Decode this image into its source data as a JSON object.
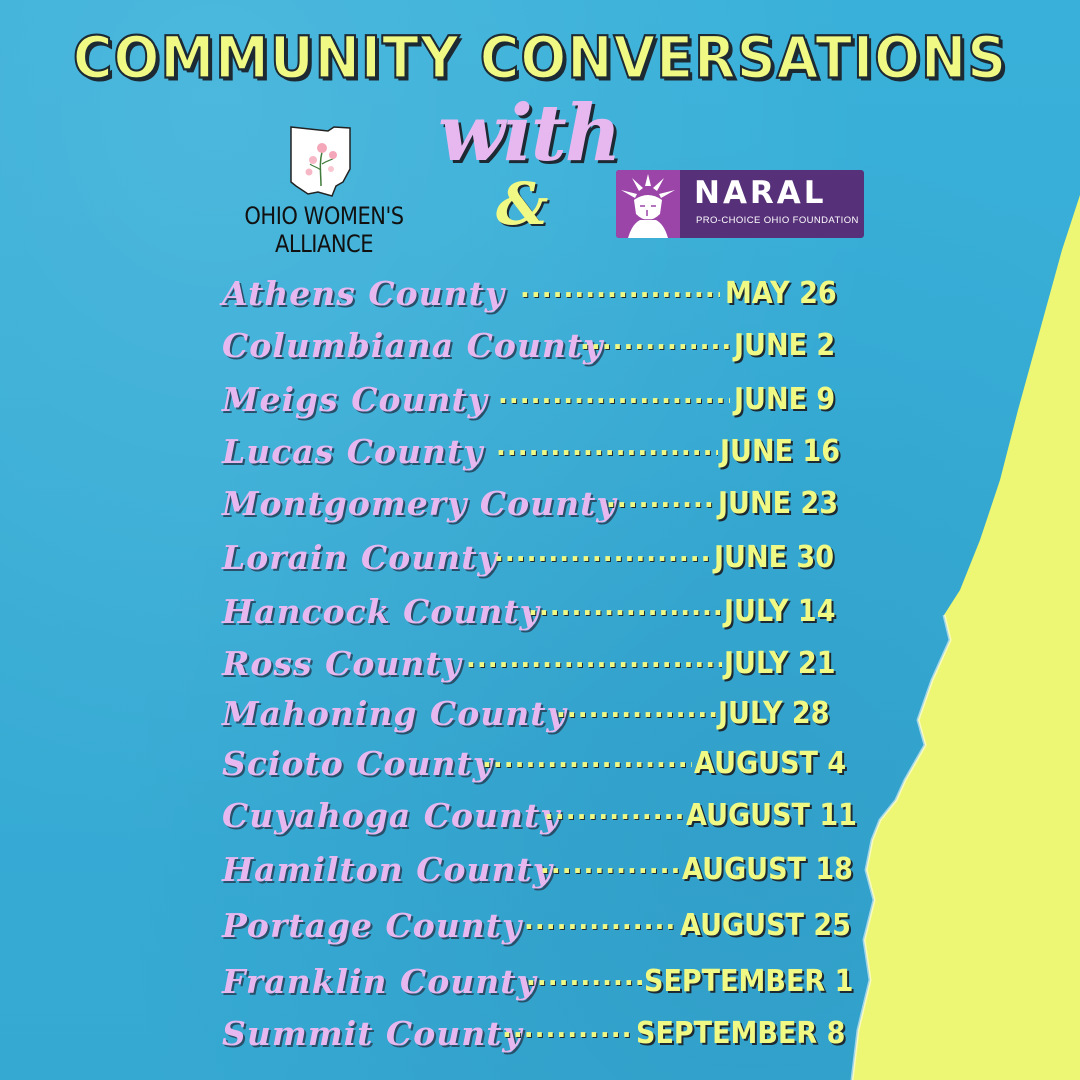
{
  "title": "COMMUNITY CONVERSATIONS",
  "connector_word": "with",
  "ampersand": "&",
  "colors": {
    "background": "#3aaed6",
    "yellow": "#f1f985",
    "lavender": "#e7b8f0",
    "naral_purple": "#57307a"
  },
  "partners": {
    "owa": {
      "name": "OHIO WOMEN'S ALLIANCE",
      "icon": "ohio-map-flower-icon"
    },
    "naral": {
      "name": "NARAL",
      "subtitle": "PRO-CHOICE OHIO FOUNDATION",
      "icon": "statue-of-liberty-icon"
    }
  },
  "schedule": [
    {
      "county": "Athens County",
      "dots": "........................",
      "date": "MAY 26"
    },
    {
      "county": "Columbiana County",
      "dots": "..................",
      "date": "JUNE 2"
    },
    {
      "county": "Meigs County",
      "dots": "...........................",
      "date": "JUNE 9"
    },
    {
      "county": "Lucas County",
      "dots": "..........................",
      "date": "JUNE 16"
    },
    {
      "county": "Montgomery County",
      "dots": ".............",
      "date": "JUNE 23"
    },
    {
      "county": "Lorain County",
      "dots": "...........................",
      "date": "JUNE 30"
    },
    {
      "county": "Hancock County",
      "dots": "........................",
      "date": "JULY 14"
    },
    {
      "county": "Ross County",
      "dots": "................................",
      "date": "JULY 21"
    },
    {
      "county": "Mahoning County",
      "dots": "...................",
      "date": "JULY 28"
    },
    {
      "county": "Scioto County",
      "dots": "..........................",
      "date": "AUGUST 4"
    },
    {
      "county": "Cuyahoga County",
      "dots": "................",
      "date": "AUGUST 11"
    },
    {
      "county": "Hamilton County",
      "dots": "................",
      "date": "AUGUST 18"
    },
    {
      "county": "Portage County",
      "dots": "...................",
      "date": "AUGUST 25"
    },
    {
      "county": "Franklin County",
      "dots": ".............",
      "date": "SEPTEMBER 1"
    },
    {
      "county": "Summit County",
      "dots": "..............",
      "date": "SEPTEMBER 8"
    }
  ]
}
